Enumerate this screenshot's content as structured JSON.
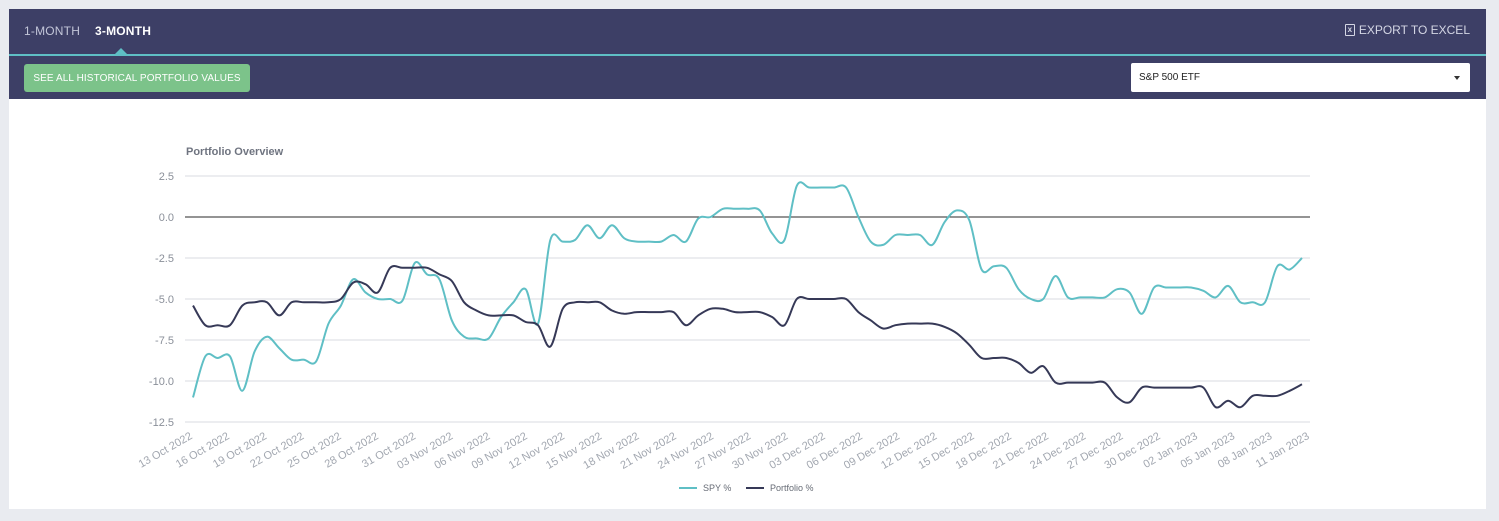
{
  "tabs": [
    {
      "label": "1-MONTH",
      "active": false
    },
    {
      "label": "3-MONTH",
      "active": true
    }
  ],
  "export": {
    "label": "EXPORT TO EXCEL",
    "icon": "excel-file-icon"
  },
  "history_button": {
    "label": "SEE ALL HISTORICAL PORTFOLIO VALUES"
  },
  "benchmark_select": {
    "value": "S&P 500 ETF"
  },
  "colors": {
    "header": "#3d3f66",
    "accent": "#5fbfc5",
    "button": "#7cc38a",
    "portfolio_line": "#363957"
  },
  "chart_data": {
    "type": "line",
    "title": "Portfolio Overview",
    "ylim": [
      -12.5,
      2.5
    ],
    "yticks": [
      "2.5",
      "0.0",
      "-2.5",
      "-5.0",
      "-7.5",
      "-10.0",
      "-12.5"
    ],
    "ytick_values": [
      2.5,
      0,
      -2.5,
      -5,
      -7.5,
      -10,
      -12.5
    ],
    "grid": true,
    "legend_position": "bottom",
    "x_tick_labels": [
      "13 Oct 2022",
      "16 Oct 2022",
      "19 Oct 2022",
      "22 Oct 2022",
      "25 Oct 2022",
      "28 Oct 2022",
      "31 Oct 2022",
      "03 Nov 2022",
      "06 Nov 2022",
      "09 Nov 2022",
      "12 Nov 2022",
      "15 Nov 2022",
      "18 Nov 2022",
      "21 Nov 2022",
      "24 Nov 2022",
      "27 Nov 2022",
      "30 Nov 2022",
      "03 Dec 2022",
      "06 Dec 2022",
      "09 Dec 2022",
      "12 Dec 2022",
      "15 Dec 2022",
      "18 Dec 2022",
      "21 Dec 2022",
      "24 Dec 2022",
      "27 Dec 2022",
      "30 Dec 2022",
      "02 Jan 2023",
      "05 Jan 2023",
      "08 Jan 2023",
      "11 Jan 2023"
    ],
    "series": [
      {
        "name": "SPY %",
        "color": "#5fbfc5",
        "values": [
          -11.0,
          -8.5,
          -8.6,
          -8.5,
          -10.6,
          -8.2,
          -7.3,
          -8.0,
          -8.7,
          -8.7,
          -8.8,
          -6.5,
          -5.4,
          -3.8,
          -4.6,
          -5.0,
          -5.0,
          -5.1,
          -2.8,
          -3.5,
          -3.8,
          -6.3,
          -7.3,
          -7.4,
          -7.4,
          -6.1,
          -5.2,
          -4.4,
          -6.5,
          -1.4,
          -1.5,
          -1.4,
          -0.5,
          -1.3,
          -0.5,
          -1.3,
          -1.5,
          -1.5,
          -1.5,
          -1.1,
          -1.5,
          -0.1,
          0.0,
          0.5,
          0.5,
          0.5,
          0.4,
          -1.0,
          -1.4,
          1.9,
          1.8,
          1.8,
          1.8,
          1.8,
          0.0,
          -1.5,
          -1.7,
          -1.1,
          -1.1,
          -1.1,
          -1.7,
          -0.3,
          0.4,
          -0.2,
          -3.2,
          -3.0,
          -3.1,
          -4.4,
          -5.0,
          -5.0,
          -3.6,
          -4.9,
          -4.9,
          -4.9,
          -4.9,
          -4.4,
          -4.6,
          -5.9,
          -4.3,
          -4.3,
          -4.3,
          -4.3,
          -4.5,
          -4.9,
          -4.2,
          -5.2,
          -5.2,
          -5.2,
          -3.0,
          -3.2,
          -2.5
        ]
      },
      {
        "name": "Portfolio %",
        "color": "#363957",
        "values": [
          -5.4,
          -6.6,
          -6.6,
          -6.6,
          -5.4,
          -5.2,
          -5.2,
          -6.0,
          -5.2,
          -5.2,
          -5.2,
          -5.2,
          -5.0,
          -4.0,
          -4.1,
          -4.6,
          -3.1,
          -3.1,
          -3.1,
          -3.1,
          -3.5,
          -3.9,
          -5.2,
          -5.7,
          -6.0,
          -6.0,
          -6.0,
          -6.4,
          -6.6,
          -7.9,
          -5.6,
          -5.2,
          -5.2,
          -5.2,
          -5.7,
          -5.9,
          -5.8,
          -5.8,
          -5.8,
          -5.8,
          -6.6,
          -6.0,
          -5.6,
          -5.6,
          -5.8,
          -5.8,
          -5.8,
          -6.1,
          -6.6,
          -5.0,
          -5.0,
          -5.0,
          -5.0,
          -5.0,
          -5.8,
          -6.3,
          -6.8,
          -6.6,
          -6.5,
          -6.5,
          -6.5,
          -6.7,
          -7.1,
          -7.8,
          -8.6,
          -8.6,
          -8.6,
          -8.9,
          -9.5,
          -9.1,
          -10.1,
          -10.1,
          -10.1,
          -10.1,
          -10.1,
          -11.0,
          -11.3,
          -10.4,
          -10.4,
          -10.4,
          -10.4,
          -10.4,
          -10.4,
          -11.6,
          -11.2,
          -11.6,
          -10.9,
          -10.9,
          -10.9,
          -10.6,
          -10.2
        ]
      }
    ]
  }
}
